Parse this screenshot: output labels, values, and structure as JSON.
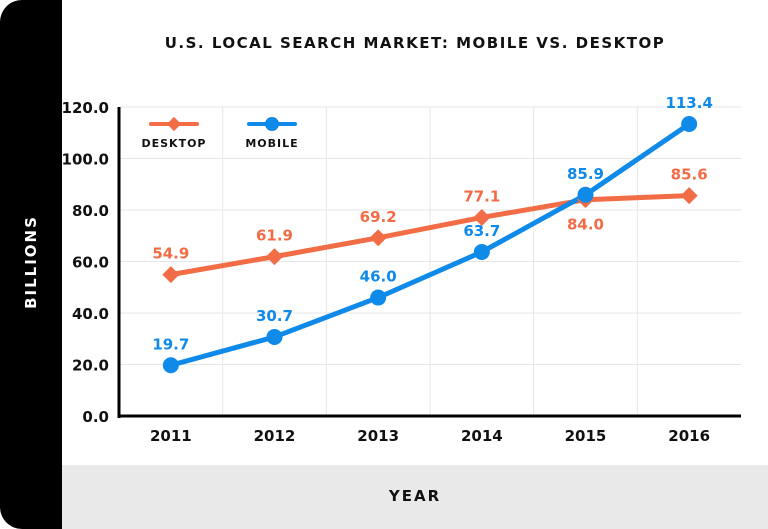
{
  "chart_data": {
    "type": "line",
    "title": "U.S. LOCAL SEARCH MARKET: MOBILE VS. DESKTOP",
    "xlabel": "YEAR",
    "ylabel": "BILLIONS",
    "categories": [
      "2011",
      "2012",
      "2013",
      "2014",
      "2015",
      "2016"
    ],
    "ylim": [
      0,
      120
    ],
    "yticks": [
      "0.0",
      "20.0",
      "40.0",
      "60.0",
      "80.0",
      "100.0",
      "120.0"
    ],
    "grid": true,
    "legend": "top-left",
    "series": [
      {
        "name": "DESKTOP",
        "color": "#f26c45",
        "marker": "diamond",
        "values": [
          54.9,
          61.9,
          69.2,
          77.1,
          84.0,
          85.6
        ],
        "labels": [
          "54.9",
          "61.9",
          "69.2",
          "77.1",
          "84.0",
          "85.6"
        ]
      },
      {
        "name": "MOBILE",
        "color": "#0f8ae9",
        "marker": "circle",
        "values": [
          19.7,
          30.7,
          46.0,
          63.7,
          85.9,
          113.4
        ],
        "labels": [
          "19.7",
          "30.7",
          "46.0",
          "63.7",
          "85.9",
          "113.4"
        ]
      }
    ]
  }
}
